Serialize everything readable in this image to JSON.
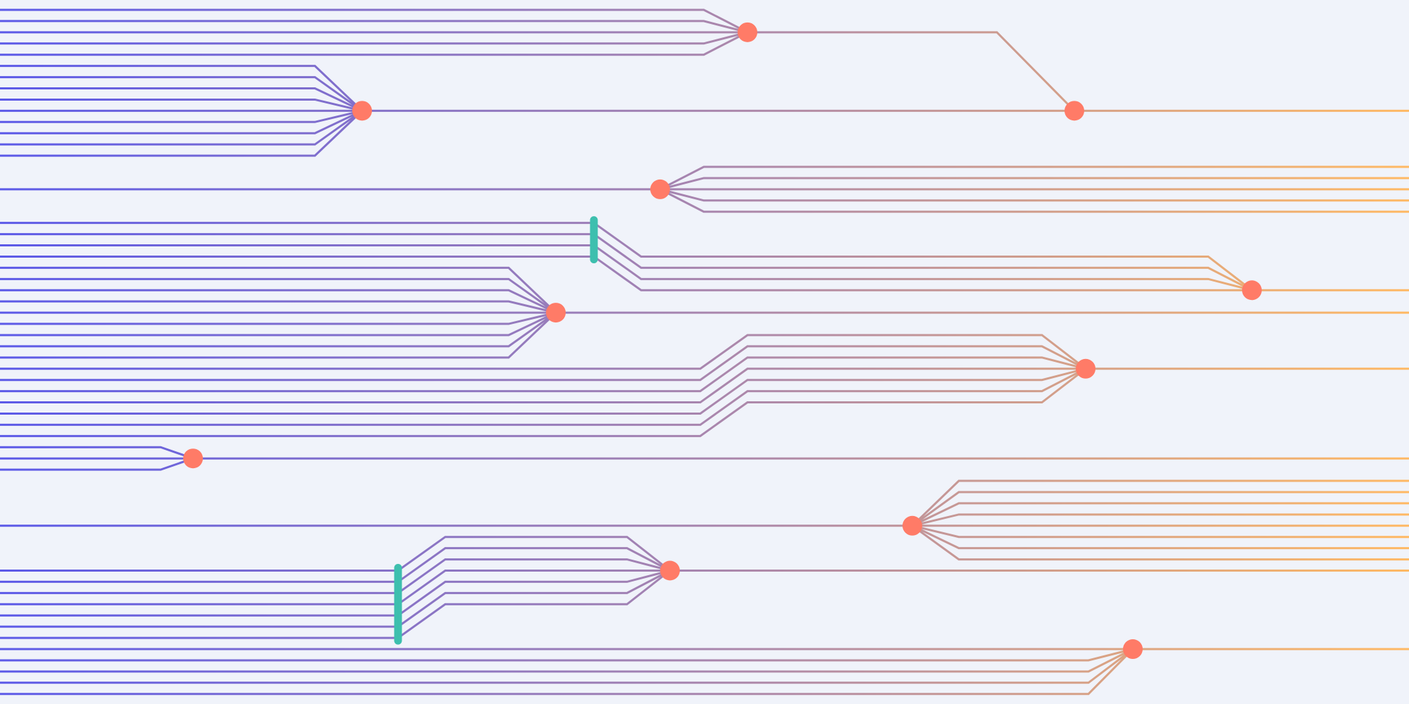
{
  "colors": {
    "background": "#f0f3fa",
    "line_start": "#5c5ae8",
    "line_mid": "#b08aa8",
    "line_end": "#ffb964",
    "merge_node": "#ff7b67",
    "junction_bar": "#3dbfae"
  }
}
